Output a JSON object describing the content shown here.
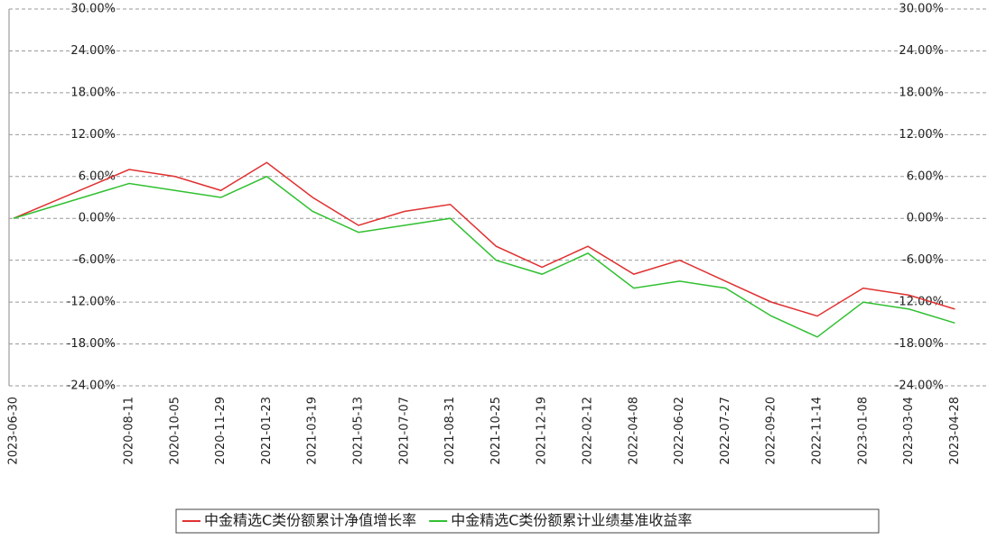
{
  "chart_data": {
    "type": "line",
    "categories": [
      "2023-06-30",
      "2020-08-11",
      "2020-10-05",
      "2020-11-29",
      "2021-01-23",
      "2021-03-19",
      "2021-05-13",
      "2021-07-07",
      "2021-08-31",
      "2021-10-25",
      "2021-12-19",
      "2022-02-12",
      "2022-04-08",
      "2022-06-02",
      "2022-07-27",
      "2022-09-20",
      "2022-11-14",
      "2023-01-08",
      "2023-03-04",
      "2023-04-28"
    ],
    "series": [
      {
        "name": "中金精选C类份额累计净值增长率",
        "color": "#e03030",
        "values": [
          0,
          7,
          6,
          4,
          8,
          3,
          -1,
          1,
          2,
          -4,
          -7,
          -4,
          -8,
          -6,
          -9,
          -12,
          -14,
          -10,
          -11,
          -13
        ]
      },
      {
        "name": "中金精选C类份额累计业绩基准收益率",
        "color": "#30c030",
        "values": [
          0,
          5,
          4,
          3,
          6,
          1,
          -2,
          -1,
          0,
          -6,
          -8,
          -5,
          -10,
          -9,
          -10,
          -14,
          -17,
          -12,
          -13,
          -15
        ]
      }
    ],
    "ylim": [
      -24,
      30
    ],
    "yticks": [
      {
        "value": -24,
        "label": "-24.00%"
      },
      {
        "value": -18,
        "label": "-18.00%"
      },
      {
        "value": -12,
        "label": "-12.00%"
      },
      {
        "value": -6,
        "label": "-6.00%"
      },
      {
        "value": 0,
        "label": "0.00%"
      },
      {
        "value": 6,
        "label": "6.00%"
      },
      {
        "value": 12,
        "label": "12.00%"
      },
      {
        "value": 18,
        "label": "18.00%"
      },
      {
        "value": 24,
        "label": "24.00%"
      },
      {
        "value": 30,
        "label": "30.00%"
      }
    ],
    "grid": true
  }
}
